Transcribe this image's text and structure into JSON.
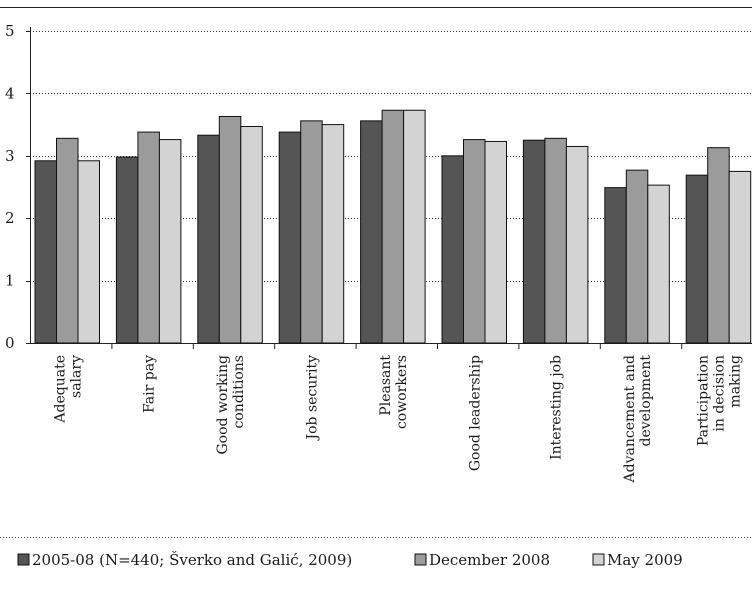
{
  "chart_data": {
    "type": "bar",
    "ylim": [
      0,
      5
    ],
    "yticks": [
      0,
      1,
      2,
      3,
      4,
      5
    ],
    "grid": true,
    "legend_position": "bottom",
    "categories": [
      [
        "Adequate",
        "salary"
      ],
      [
        "Fair pay"
      ],
      [
        "Good working",
        "conditions"
      ],
      [
        "Job security"
      ],
      [
        "Pleasant",
        "coworkers"
      ],
      [
        "Good leadership"
      ],
      [
        "Interesting job"
      ],
      [
        "Advancement and",
        "development"
      ],
      [
        "Participation",
        "in decision",
        "making"
      ]
    ],
    "series": [
      {
        "name": "2005-08 (N=440; Šverko and Galić, 2009)",
        "color": "#555555",
        "values": [
          2.92,
          2.98,
          3.33,
          3.38,
          3.56,
          3.0,
          3.25,
          2.49,
          2.69
        ]
      },
      {
        "name": "December 2008",
        "color": "#9b9b9b",
        "values": [
          3.28,
          3.38,
          3.63,
          3.56,
          3.73,
          3.26,
          3.28,
          2.77,
          3.13
        ]
      },
      {
        "name": "May 2009",
        "color": "#d3d3d3",
        "values": [
          2.92,
          3.26,
          3.47,
          3.5,
          3.73,
          3.23,
          3.15,
          2.53,
          2.75
        ]
      }
    ]
  }
}
